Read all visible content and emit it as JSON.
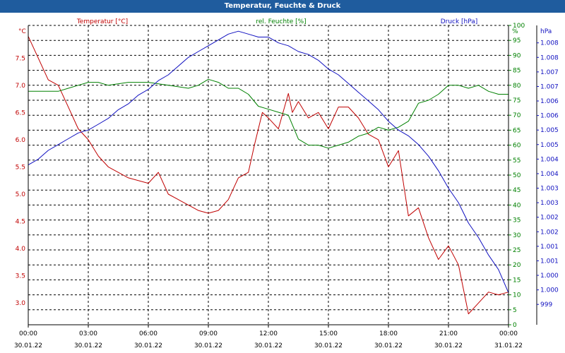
{
  "window_title": "Temperatur, Feuchte & Druck",
  "colors": {
    "temperature": "#c00000",
    "humidity": "#008000",
    "pressure": "#1010c0",
    "titlebar": "#1f5c9e"
  },
  "chart_data": {
    "type": "line",
    "title": "Temperatur, Feuchte & Druck",
    "grid": true,
    "x_ticks": [
      {
        "time": "00:00",
        "date": "30.01.22"
      },
      {
        "time": "03:00",
        "date": "30.01.22"
      },
      {
        "time": "06:00",
        "date": "30.01.22"
      },
      {
        "time": "09:00",
        "date": "30.01.22"
      },
      {
        "time": "12:00",
        "date": "30.01.22"
      },
      {
        "time": "15:00",
        "date": "30.01.22"
      },
      {
        "time": "18:00",
        "date": "30.01.22"
      },
      {
        "time": "21:00",
        "date": "30.01.22"
      },
      {
        "time": "00:00",
        "date": "31.01.22"
      }
    ],
    "x_range_hours": [
      0,
      24
    ],
    "axes": {
      "temperature": {
        "label": "Temperatur [°C]",
        "unit": "°C",
        "range": [
          2.6,
          8.1
        ],
        "ticks": [
          "3.0",
          "3.5",
          "4.0",
          "4.5",
          "5.0",
          "5.5",
          "6.0",
          "6.5",
          "7.0",
          "7.5"
        ]
      },
      "humidity": {
        "label": "rel. Feuchte [%]",
        "unit": "%",
        "range": [
          0,
          100
        ],
        "ticks": [
          "0",
          "5",
          "10",
          "15",
          "20",
          "25",
          "30",
          "35",
          "40",
          "45",
          "50",
          "55",
          "60",
          "65",
          "70",
          "75",
          "80",
          "85",
          "90",
          "95",
          "100"
        ]
      },
      "pressure": {
        "label": "Druck [hPa]",
        "unit": "hPa",
        "range": [
          998.3,
          1008.6
        ],
        "ticks": [
          "999",
          "1.000",
          "1.000",
          "1.001",
          "1.001",
          "1.002",
          "1.002",
          "1.003",
          "1.003",
          "1.004",
          "1.004",
          "1.005",
          "1.005",
          "1.006",
          "1.006",
          "1.007",
          "1.007",
          "1.008",
          "1.008"
        ]
      }
    },
    "series": [
      {
        "name": "Temperatur [°C]",
        "axis": "temperature",
        "x": [
          0,
          0.5,
          1,
          1.5,
          2,
          2.5,
          3,
          3.5,
          4,
          5,
          6,
          6.5,
          7,
          7.5,
          8,
          8.5,
          9,
          9.5,
          10,
          10.5,
          11,
          11.3,
          11.7,
          12,
          12.5,
          13,
          13.2,
          13.5,
          14,
          14.5,
          15,
          15.5,
          16,
          16.5,
          17,
          17.5,
          18,
          18.5,
          19,
          19.5,
          20,
          20.5,
          21,
          21.5,
          22,
          22.5,
          23,
          23.5,
          24
        ],
        "values": [
          7.9,
          7.5,
          7.1,
          7.0,
          6.6,
          6.2,
          6.0,
          5.7,
          5.5,
          5.3,
          5.2,
          5.4,
          5.0,
          4.9,
          4.8,
          4.7,
          4.65,
          4.7,
          4.9,
          5.3,
          5.4,
          5.9,
          6.5,
          6.4,
          6.2,
          6.85,
          6.5,
          6.7,
          6.4,
          6.5,
          6.2,
          6.6,
          6.6,
          6.4,
          6.1,
          6.0,
          5.5,
          5.8,
          4.6,
          4.75,
          4.2,
          3.8,
          4.05,
          3.7,
          2.8,
          3.0,
          3.2,
          3.15,
          3.2
        ]
      },
      {
        "name": "rel. Feuchte [%]",
        "axis": "humidity",
        "x": [
          0,
          0.5,
          1,
          1.5,
          2,
          2.5,
          3,
          3.5,
          4,
          5,
          6,
          7,
          8,
          8.5,
          9,
          9.5,
          10,
          10.5,
          11,
          11.5,
          12,
          12.5,
          13,
          13.5,
          14,
          14.5,
          15,
          15.5,
          16,
          16.5,
          17,
          17.5,
          18,
          18.5,
          19,
          19.5,
          20,
          20.5,
          21,
          21.5,
          22,
          22.5,
          23,
          23.5,
          24
        ],
        "values": [
          78,
          78,
          78,
          78,
          79,
          80,
          81,
          81,
          80,
          81,
          81,
          80,
          79,
          80,
          82,
          81,
          79,
          79,
          77,
          73,
          72,
          71,
          70,
          62,
          60,
          60,
          59,
          60,
          61,
          63,
          64,
          66,
          65,
          66,
          68,
          74,
          75,
          77,
          80,
          80,
          79,
          80,
          78,
          77,
          77
        ]
      },
      {
        "name": "Druck [hPa]",
        "axis": "pressure",
        "x": [
          0,
          0.5,
          1,
          1.5,
          2,
          2.5,
          3,
          3.5,
          4,
          4.5,
          5,
          5.5,
          6,
          6.5,
          7,
          7.5,
          8,
          8.5,
          9,
          9.5,
          10,
          10.5,
          11,
          11.5,
          12,
          12.5,
          13,
          13.5,
          14,
          14.5,
          15,
          15.5,
          16,
          16.5,
          17,
          17.5,
          18,
          18.5,
          19,
          19.5,
          20,
          20.5,
          21,
          21.5,
          22,
          22.5,
          23,
          23.5,
          24
        ],
        "values": [
          1003.8,
          1004.0,
          1004.3,
          1004.5,
          1004.7,
          1004.9,
          1005.0,
          1005.2,
          1005.4,
          1005.7,
          1005.9,
          1006.2,
          1006.4,
          1006.7,
          1006.9,
          1007.2,
          1007.5,
          1007.7,
          1007.9,
          1008.1,
          1008.3,
          1008.4,
          1008.3,
          1008.2,
          1008.2,
          1008.0,
          1007.9,
          1007.7,
          1007.6,
          1007.4,
          1007.1,
          1006.9,
          1006.6,
          1006.3,
          1006.0,
          1005.7,
          1005.3,
          1005.0,
          1004.8,
          1004.5,
          1004.1,
          1003.6,
          1003.0,
          1002.5,
          1001.8,
          1001.3,
          1000.7,
          1000.2,
          999.4
        ]
      }
    ]
  }
}
